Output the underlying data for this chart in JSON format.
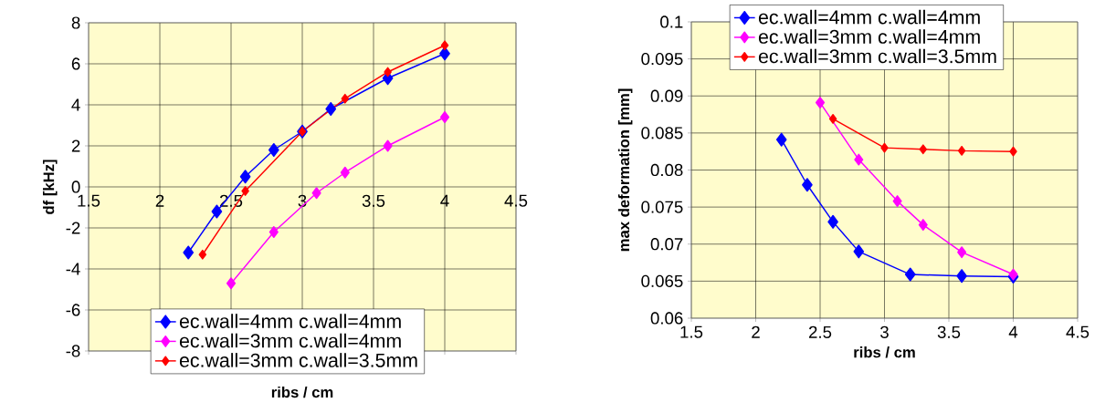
{
  "chart_data": [
    {
      "type": "line",
      "xlabel": "ribs / cm",
      "ylabel": "df  [kHz]",
      "xlim": [
        1.5,
        4.5
      ],
      "ylim": [
        -8,
        8
      ],
      "xticks": [
        1.5,
        2,
        2.5,
        3,
        3.5,
        4,
        4.5
      ],
      "yticks": [
        -8,
        -6,
        -4,
        -2,
        0,
        2,
        4,
        6,
        8
      ],
      "grid": true,
      "legend": "bottom right",
      "marker": "diamond",
      "line_style": "solid",
      "series": [
        {
          "name": "ec.wall=4mm c.wall=4mm",
          "color": "#0000ff",
          "x": [
            2.2,
            2.4,
            2.6,
            2.8,
            3.0,
            3.2,
            3.6,
            4.0
          ],
          "values": [
            -3.2,
            -1.2,
            0.5,
            1.8,
            2.7,
            3.8,
            5.3,
            6.5
          ]
        },
        {
          "name": "ec.wall=3mm c.wall=4mm",
          "color": "#ff00ff",
          "x": [
            2.5,
            2.8,
            3.1,
            3.3,
            3.6,
            4.0
          ],
          "values": [
            -4.7,
            -2.2,
            -0.3,
            0.7,
            2.0,
            3.4
          ]
        },
        {
          "name": "ec.wall=3mm c.wall=3.5mm",
          "color": "#ff0000",
          "x": [
            2.3,
            2.6,
            3.0,
            3.3,
            3.6,
            4.0
          ],
          "values": [
            -3.3,
            -0.2,
            2.7,
            4.3,
            5.6,
            6.9
          ]
        }
      ]
    },
    {
      "type": "line",
      "xlabel": "ribs / cm",
      "ylabel": "max deformation  [mm]",
      "xlim": [
        1.5,
        4.5
      ],
      "ylim": [
        0.06,
        0.1
      ],
      "xticks": [
        1.5,
        2,
        2.5,
        3,
        3.5,
        4,
        4.5
      ],
      "yticks": [
        0.06,
        0.065,
        0.07,
        0.075,
        0.08,
        0.085,
        0.09,
        0.095,
        0.1
      ],
      "grid": true,
      "legend": "top right",
      "marker": "diamond",
      "line_style": "solid",
      "series": [
        {
          "name": "ec.wall=4mm c.wall=4mm",
          "color": "#0000ff",
          "x": [
            2.2,
            2.4,
            2.6,
            2.8,
            3.2,
            3.6,
            4.0
          ],
          "values": [
            0.0841,
            0.078,
            0.073,
            0.069,
            0.0659,
            0.0657,
            0.0656
          ]
        },
        {
          "name": "ec.wall=3mm c.wall=4mm",
          "color": "#ff00ff",
          "x": [
            2.5,
            2.8,
            3.1,
            3.3,
            3.6,
            4.0
          ],
          "values": [
            0.0891,
            0.0814,
            0.0758,
            0.0726,
            0.0689,
            0.0659
          ]
        },
        {
          "name": "ec.wall=3mm c.wall=3.5mm",
          "color": "#ff0000",
          "x": [
            2.6,
            3.0,
            3.3,
            3.6,
            4.0
          ],
          "values": [
            0.0869,
            0.083,
            0.0828,
            0.0826,
            0.0825
          ]
        }
      ]
    }
  ]
}
